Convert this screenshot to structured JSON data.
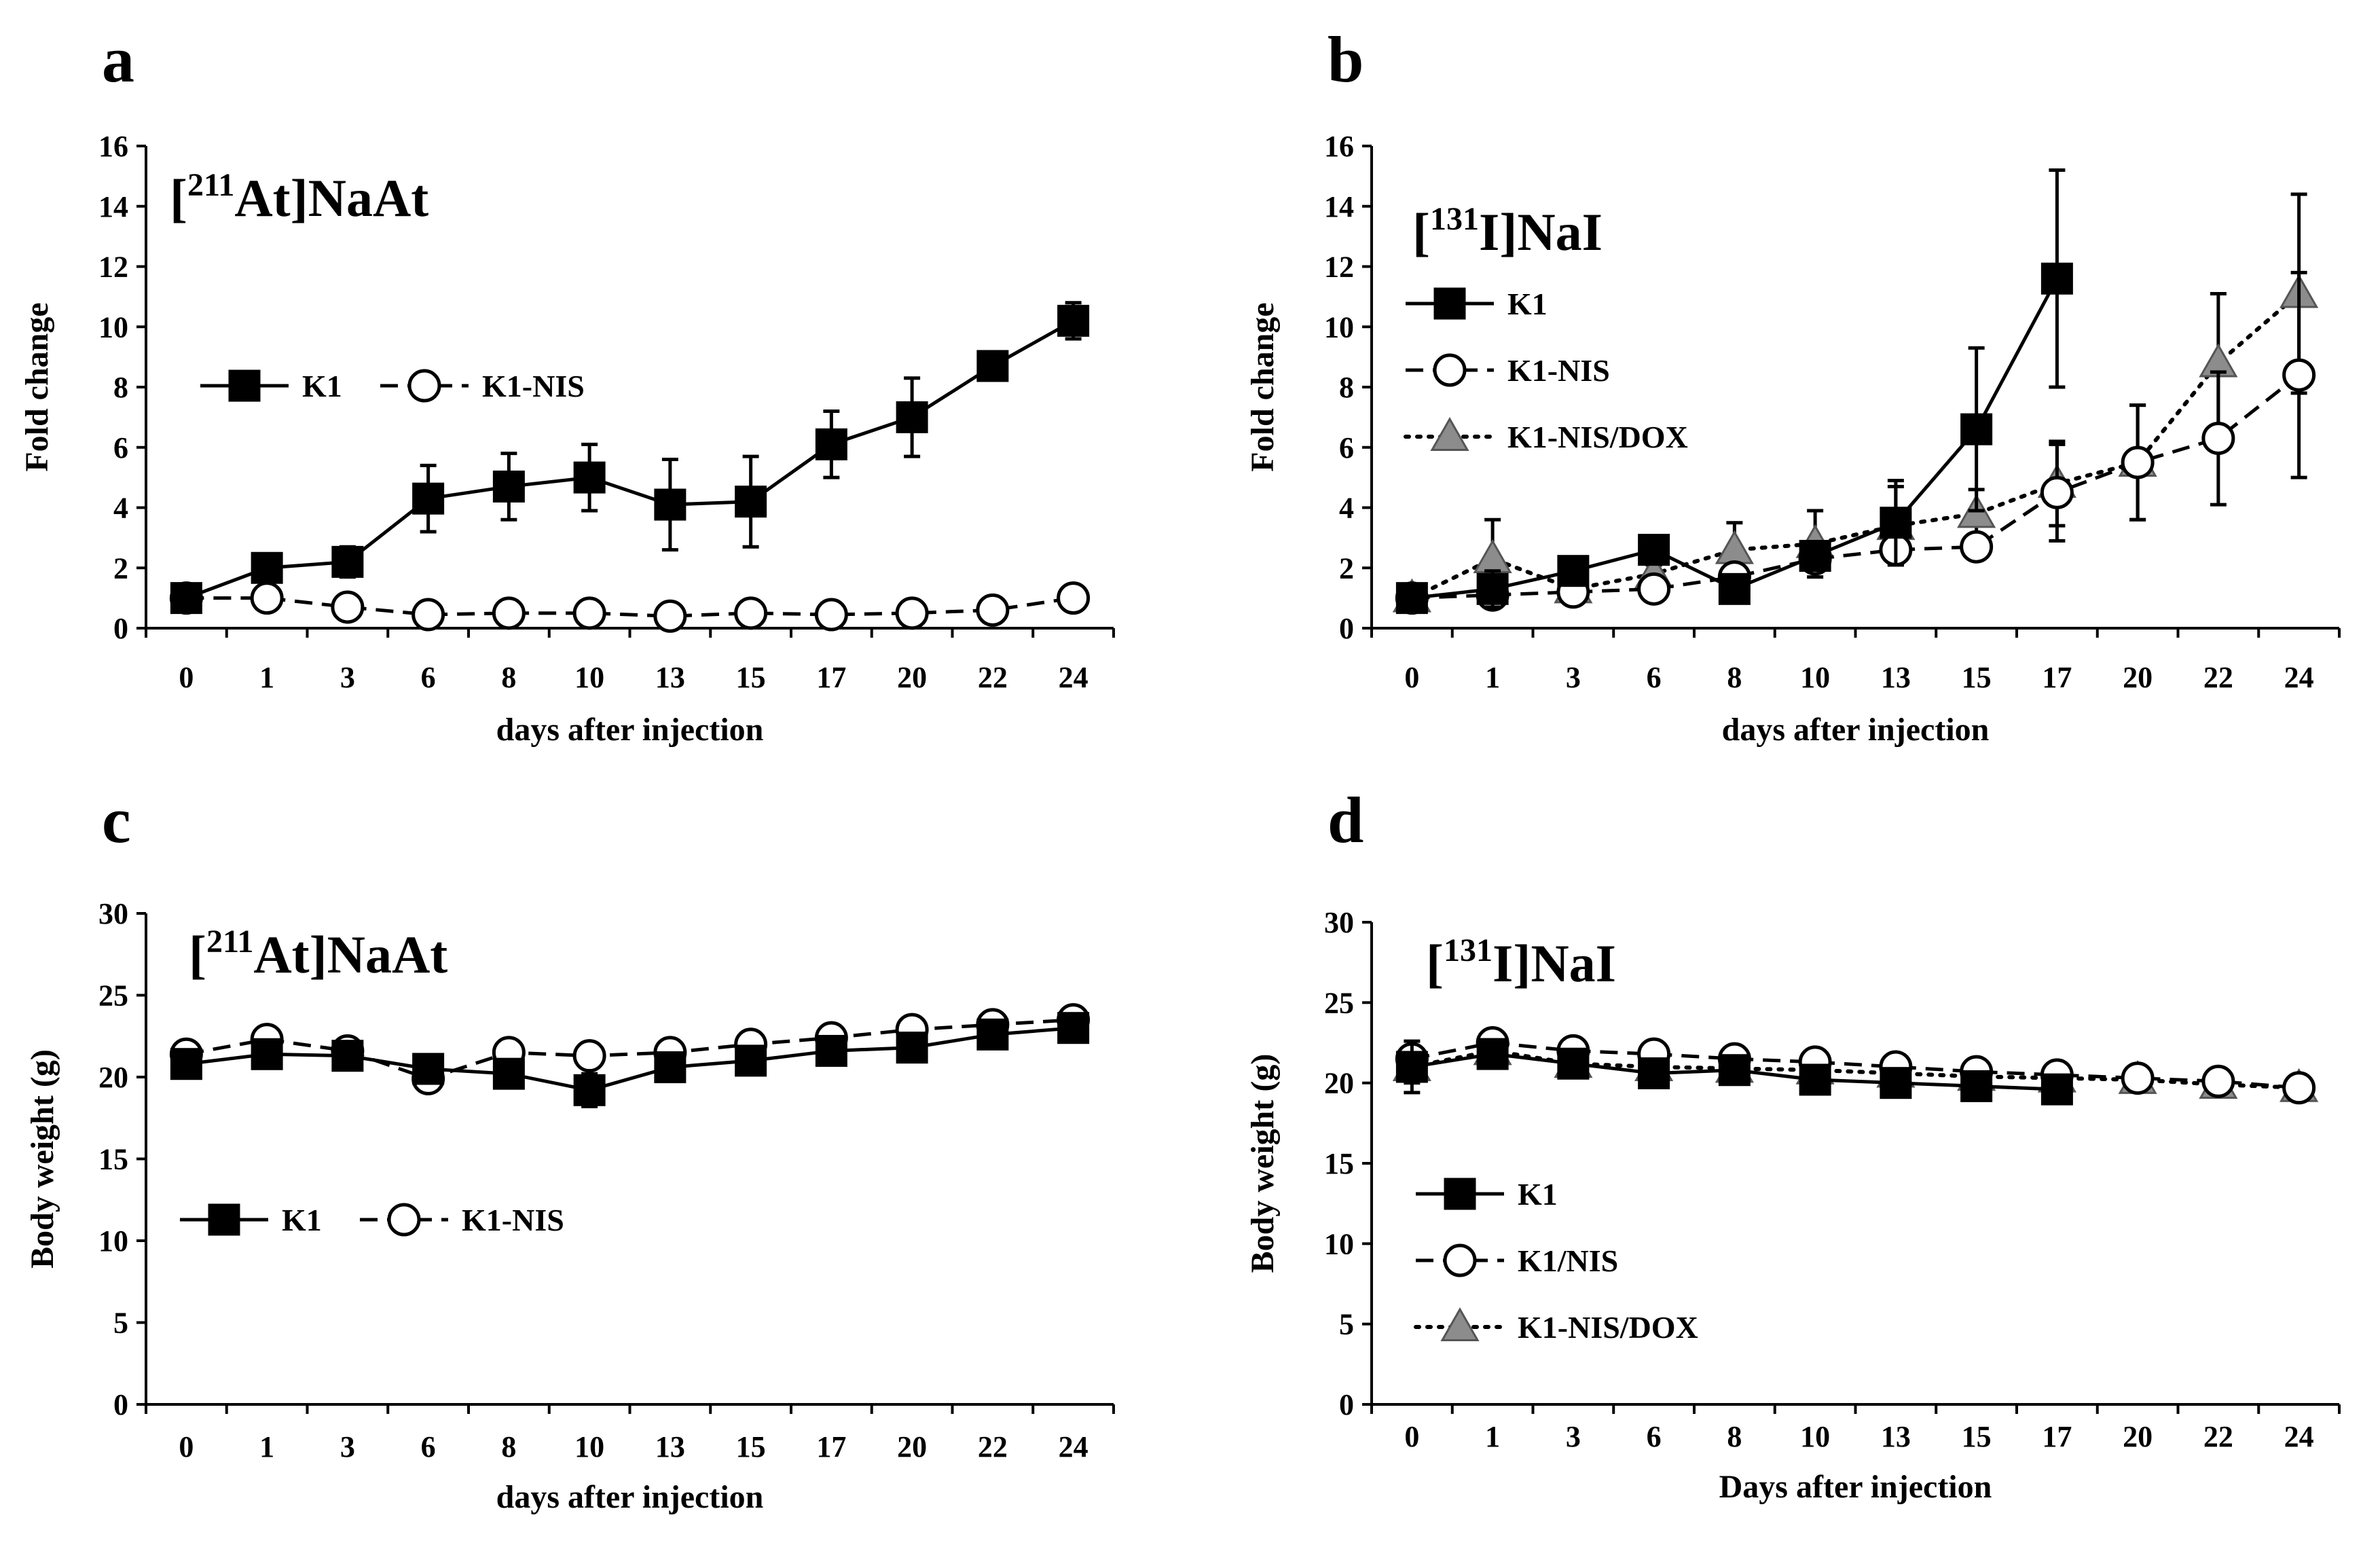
{
  "chart_data": [
    {
      "panel": "a",
      "type": "line",
      "title": {
        "prefix": "[",
        "superscript": "211",
        "suffix": "At]NaAt"
      },
      "xlabel": "days after injection",
      "ylabel": "Fold change",
      "categories": [
        "0",
        "1",
        "3",
        "6",
        "8",
        "10",
        "13",
        "15",
        "17",
        "20",
        "22",
        "24"
      ],
      "ylim": [
        0,
        16
      ],
      "yticks": [
        0,
        2,
        4,
        6,
        8,
        10,
        12,
        14,
        16
      ],
      "legend_position": "upper-left-inline",
      "series": [
        {
          "name": "K1",
          "marker": "filled-square",
          "line": "solid",
          "color": "#000000",
          "values": [
            1.0,
            2.0,
            2.2,
            4.3,
            4.7,
            5.0,
            4.1,
            4.2,
            6.1,
            7.0,
            8.7,
            10.2
          ],
          "errors": [
            0.3,
            0.3,
            0.5,
            1.1,
            1.1,
            1.1,
            1.5,
            1.5,
            1.1,
            1.3,
            0.4,
            0.6
          ]
        },
        {
          "name": "K1-NIS",
          "marker": "open-circle",
          "line": "dashed",
          "color": "#000000",
          "values": [
            1.0,
            1.0,
            0.7,
            0.45,
            0.5,
            0.5,
            0.4,
            0.5,
            0.45,
            0.5,
            0.6,
            1.0
          ],
          "errors": [
            0.1,
            0.1,
            0.1,
            0.05,
            0.05,
            0.05,
            0.05,
            0.05,
            0.05,
            0.05,
            0.05,
            0.1
          ]
        }
      ]
    },
    {
      "panel": "b",
      "type": "line",
      "title": {
        "prefix": "[",
        "superscript": "131",
        "suffix": "I]NaI"
      },
      "xlabel": "days after injection",
      "ylabel": "Fold change",
      "categories": [
        "0",
        "1",
        "3",
        "6",
        "8",
        "10",
        "13",
        "15",
        "17",
        "20",
        "22",
        "24"
      ],
      "ylim": [
        0,
        16
      ],
      "yticks": [
        0,
        2,
        4,
        6,
        8,
        10,
        12,
        14,
        16
      ],
      "legend_position": "upper-left-stacked",
      "series": [
        {
          "name": "K1",
          "marker": "filled-square",
          "line": "solid",
          "color": "#000000",
          "values": [
            1.0,
            1.3,
            1.9,
            2.6,
            1.3,
            2.4,
            3.5,
            6.6,
            11.6,
            null,
            null,
            null
          ],
          "errors": [
            0.2,
            0.6,
            0.3,
            0.3,
            0.3,
            0.4,
            1.4,
            2.7,
            3.6,
            null,
            null,
            null
          ]
        },
        {
          "name": "K1-NIS",
          "marker": "open-circle",
          "line": "dashed",
          "color": "#000000",
          "values": [
            1.0,
            1.1,
            1.2,
            1.3,
            1.7,
            2.3,
            2.6,
            2.7,
            4.5,
            5.5,
            6.3,
            8.4
          ],
          "errors": [
            0.1,
            0.2,
            0.2,
            0.2,
            0.3,
            0.3,
            0.3,
            0.4,
            1.6,
            1.9,
            2.2,
            3.4
          ]
        },
        {
          "name": "K1-NIS/DOX",
          "marker": "grey-triangle",
          "line": "dotted",
          "color": "#808080",
          "values": [
            1.0,
            2.3,
            1.3,
            1.8,
            2.6,
            2.8,
            3.4,
            3.8,
            4.8,
            5.5,
            8.8,
            11.1
          ],
          "errors": [
            0.1,
            1.3,
            0.3,
            0.3,
            0.9,
            1.1,
            1.3,
            0.8,
            1.4,
            1.9,
            2.3,
            3.3
          ]
        }
      ]
    },
    {
      "panel": "c",
      "type": "line",
      "title": {
        "prefix": "[",
        "superscript": "211",
        "suffix": "At]NaAt"
      },
      "xlabel": "days after injection",
      "ylabel": "Body weight (g)",
      "categories": [
        "0",
        "1",
        "3",
        "6",
        "8",
        "10",
        "13",
        "15",
        "17",
        "20",
        "22",
        "24"
      ],
      "ylim": [
        0,
        30
      ],
      "yticks": [
        0,
        5,
        10,
        15,
        20,
        25,
        30
      ],
      "legend_position": "lower-left-inline",
      "series": [
        {
          "name": "K1",
          "marker": "filled-square",
          "line": "solid",
          "color": "#000000",
          "values": [
            20.8,
            21.4,
            21.3,
            20.5,
            20.2,
            19.2,
            20.6,
            21.0,
            21.6,
            21.8,
            22.6,
            23.0
          ],
          "errors": [
            0.4,
            0.4,
            0.4,
            0.4,
            0.4,
            1.0,
            0.4,
            0.4,
            0.4,
            0.4,
            0.4,
            0.4
          ]
        },
        {
          "name": "K1-NIS",
          "marker": "open-circle",
          "line": "dashed",
          "color": "#000000",
          "values": [
            21.4,
            22.3,
            21.6,
            19.9,
            21.5,
            21.3,
            21.5,
            22.0,
            22.4,
            22.9,
            23.2,
            23.5
          ],
          "errors": [
            0.4,
            0.4,
            0.4,
            0.4,
            0.4,
            0.4,
            0.4,
            0.4,
            0.4,
            0.4,
            0.4,
            0.4
          ]
        }
      ]
    },
    {
      "panel": "d",
      "type": "line",
      "title": {
        "prefix": "[",
        "superscript": "131",
        "suffix": "I]NaI"
      },
      "xlabel": "Days after injection",
      "ylabel": "Body weight (g)",
      "categories": [
        "0",
        "1",
        "3",
        "6",
        "8",
        "10",
        "13",
        "15",
        "17",
        "20",
        "22",
        "24"
      ],
      "ylim": [
        0,
        30
      ],
      "yticks": [
        0,
        5,
        10,
        15,
        20,
        25,
        30
      ],
      "legend_position": "lower-left-stacked",
      "series": [
        {
          "name": "K1",
          "marker": "filled-square",
          "line": "solid",
          "color": "#000000",
          "values": [
            21.0,
            21.8,
            21.2,
            20.6,
            20.8,
            20.2,
            20.0,
            19.8,
            19.6,
            null,
            null,
            null
          ],
          "errors": [
            1.6,
            0.5,
            0.5,
            0.5,
            0.5,
            0.5,
            0.5,
            0.5,
            0.5,
            null,
            null,
            null
          ]
        },
        {
          "name": "K1/NIS",
          "marker": "open-circle",
          "line": "dashed",
          "color": "#000000",
          "values": [
            21.5,
            22.5,
            22.0,
            21.8,
            21.5,
            21.3,
            21.0,
            20.7,
            20.5,
            20.3,
            20.1,
            19.7
          ],
          "errors": [
            0.5,
            0.5,
            0.5,
            0.5,
            0.5,
            0.5,
            0.5,
            0.5,
            0.5,
            0.5,
            0.5,
            0.5
          ]
        },
        {
          "name": "K1-NIS/DOX",
          "marker": "grey-triangle",
          "line": "dotted",
          "color": "#808080",
          "values": [
            21.0,
            22.0,
            21.2,
            21.0,
            20.9,
            20.8,
            20.6,
            20.4,
            20.3,
            20.2,
            19.9,
            19.7
          ],
          "errors": [
            1.0,
            0.5,
            0.5,
            0.5,
            0.5,
            0.5,
            0.5,
            0.5,
            0.5,
            0.5,
            0.5,
            0.5
          ]
        }
      ]
    }
  ]
}
